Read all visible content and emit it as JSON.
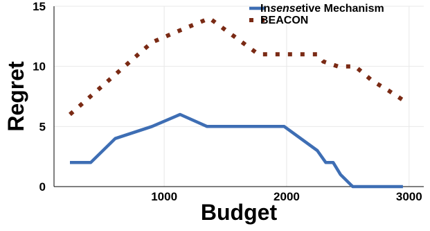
{
  "chart_data": {
    "type": "line",
    "title": "",
    "xlabel": "Budget",
    "ylabel": "Regret",
    "xlim": [
      100,
      3120
    ],
    "ylim": [
      0,
      15
    ],
    "x_ticks": [
      {
        "value": 1000,
        "label": "1000"
      },
      {
        "value": 2000,
        "label": "2000"
      },
      {
        "value": 3000,
        "label": "3000"
      }
    ],
    "y_ticks": [
      {
        "value": 0,
        "label": "0"
      },
      {
        "value": 5,
        "label": "5"
      },
      {
        "value": 10,
        "label": "10"
      },
      {
        "value": 15,
        "label": "15"
      }
    ],
    "grid": true,
    "legend_position": "top-right",
    "legend": [
      {
        "parts": [
          {
            "text": "In",
            "italic": false
          },
          {
            "text": "sense",
            "italic": true
          },
          {
            "text": "tive Mechanism",
            "italic": false
          }
        ]
      },
      {
        "parts": [
          {
            "text": "BEACON",
            "italic": false
          }
        ]
      }
    ],
    "series": [
      {
        "name": "Insensetive Mechanism",
        "color": "#3e6eb4",
        "style": "solid",
        "points": [
          [
            230,
            2
          ],
          [
            400,
            2
          ],
          [
            600,
            4
          ],
          [
            900,
            5
          ],
          [
            1130,
            6
          ],
          [
            1350,
            5
          ],
          [
            1980,
            5
          ],
          [
            2250,
            3
          ],
          [
            2320,
            2
          ],
          [
            2380,
            2
          ],
          [
            2440,
            1
          ],
          [
            2540,
            0
          ],
          [
            2950,
            0
          ]
        ]
      },
      {
        "name": "BEACON",
        "color": "#7a2a14",
        "style": "dotted",
        "points": [
          [
            230,
            6
          ],
          [
            900,
            12
          ],
          [
            1130,
            13
          ],
          [
            1370,
            14
          ],
          [
            1770,
            11
          ],
          [
            2250,
            11
          ],
          [
            2300,
            10.4
          ],
          [
            2420,
            10
          ],
          [
            2560,
            10
          ],
          [
            2700,
            8.8
          ],
          [
            2830,
            8
          ],
          [
            2950,
            7.2
          ]
        ]
      }
    ]
  }
}
